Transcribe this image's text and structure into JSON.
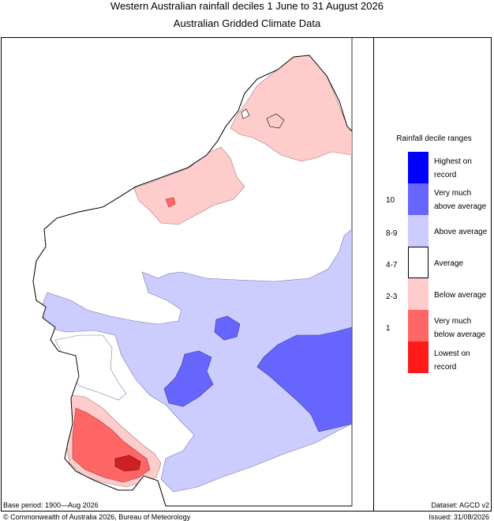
{
  "header": {
    "title_line1": "Western Australian rainfall deciles     1 June to 31 August 2026",
    "title_line2": "Australian Gridded Climate Data"
  },
  "legend": {
    "title": "Rainfall decile ranges",
    "entries": [
      {
        "label_l1": "Highest on",
        "label_l2": "record",
        "decile": "",
        "color": "#0000ff"
      },
      {
        "label_l1": "Very much",
        "label_l2": "above average",
        "decile": "10",
        "color": "#6666ff"
      },
      {
        "label_l1": "Above average",
        "label_l2": "",
        "decile": "8-9",
        "color": "#ccccff"
      },
      {
        "label_l1": "Average",
        "label_l2": "",
        "decile": "4-7",
        "color": "#ffffff"
      },
      {
        "label_l1": "Below average",
        "label_l2": "",
        "decile": "2-3",
        "color": "#ffcccc"
      },
      {
        "label_l1": "Very much",
        "label_l2": "below average",
        "decile": "1",
        "color": "#ff6666"
      },
      {
        "label_l1": "Lowest on",
        "label_l2": "record",
        "decile": "",
        "color": "#ff1a1a"
      }
    ]
  },
  "footer": {
    "base_period": "Base period: 1900—Aug 2026",
    "dataset": "Dataset: AGCD v2",
    "copyright": "© Commonwealth of Australia 2026, Bureau of Meteorology",
    "issued": "Issued: 31/08/2026"
  },
  "colors": {
    "above": "#ccccff",
    "very_above": "#6666ff",
    "below": "#ffcccc",
    "very_below": "#ff6666",
    "lowest": "#ff1a1a",
    "highest": "#0000ff"
  }
}
